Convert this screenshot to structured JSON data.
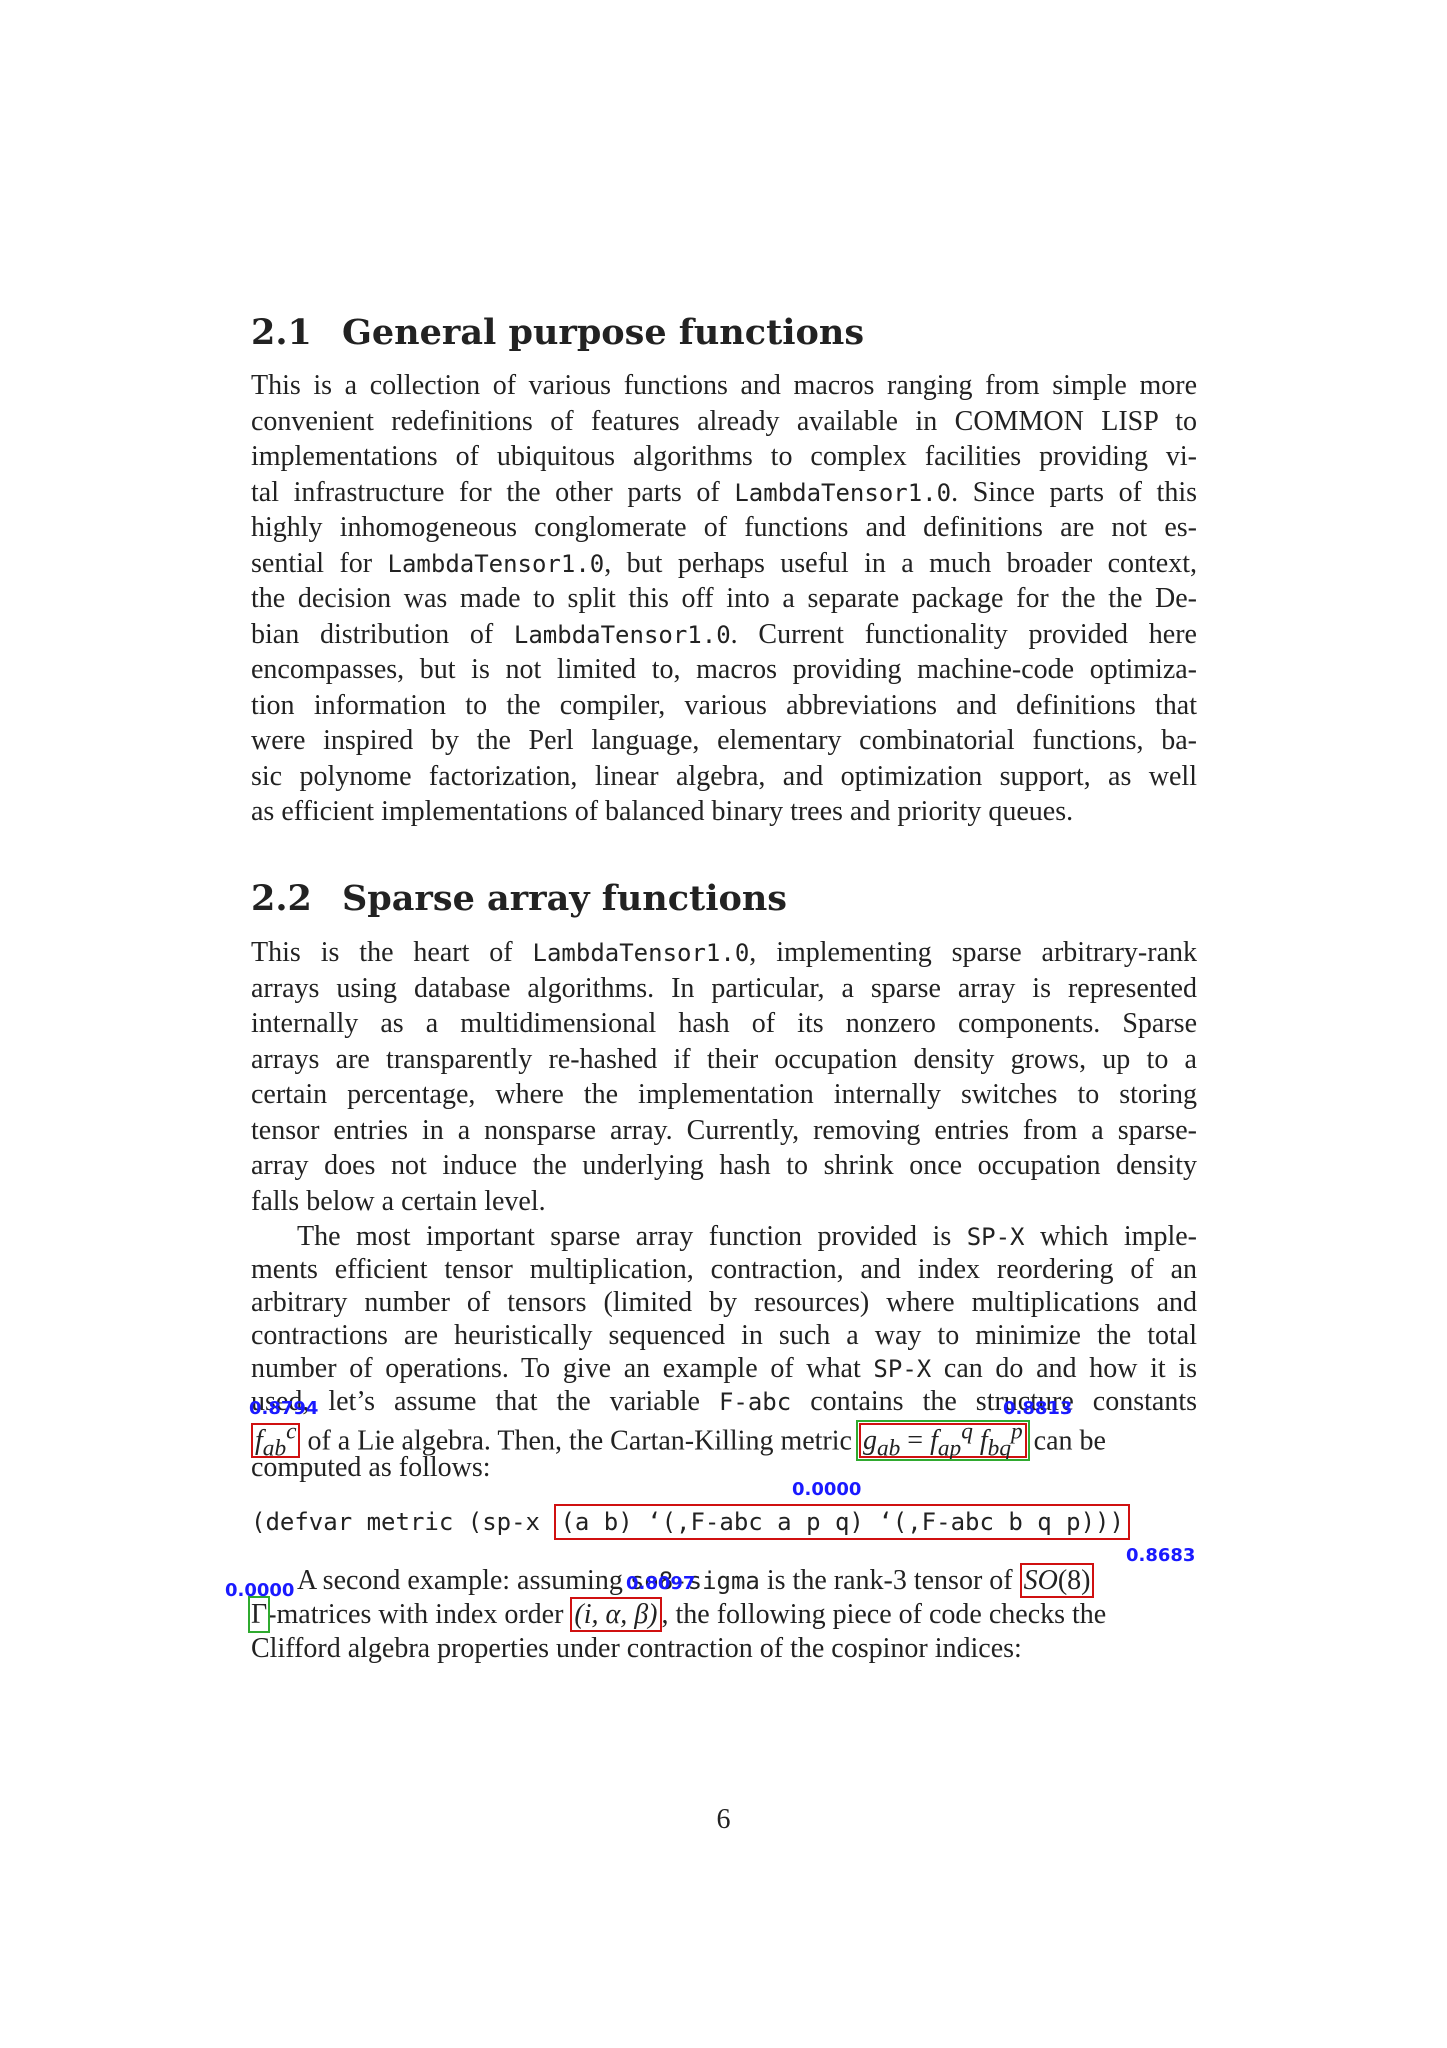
{
  "sections": [
    {
      "number": "2.1",
      "title": "General purpose functions",
      "lines": [
        "This is a collection of various functions and macros ranging from simple more",
        "convenient redefinitions of features already available in COMMON LISP to",
        "implementations of ubiquitous algorithms to complex facilities providing vi-",
        [
          "tal infrastructure for the other parts of ",
          "LambdaTensor1.0",
          ". Since parts of this"
        ],
        "highly inhomogeneous conglomerate of functions and definitions are not es-",
        [
          "sential for ",
          "LambdaTensor1.0",
          ", but perhaps useful in a much broader context,"
        ],
        "the decision was made to split this off into a separate package for the the De-",
        [
          "bian distribution of ",
          "LambdaTensor1.0",
          ". Current functionality provided here"
        ],
        "encompasses, but is not limited to, macros providing machine-code optimiza-",
        "tion information to the compiler, various abbreviations and definitions that",
        "were inspired by the Perl language, elementary combinatorial functions, ba-",
        "sic polynome factorization, linear algebra, and optimization support, as well",
        "as efficient implementations of balanced binary trees and priority queues."
      ]
    },
    {
      "number": "2.2",
      "title": "Sparse array functions",
      "lines": [
        [
          "This is the heart of ",
          "LambdaTensor1.0",
          ", implementing sparse arbitrary-rank"
        ],
        "arrays using database algorithms. In particular, a sparse array is represented",
        "internally as a multidimensional hash of its nonzero components. Sparse",
        "arrays are transparently re-hashed if their occupation density grows, up to a",
        "certain percentage, where the implementation internally switches to storing",
        "tensor entries in a nonsparse array. Currently, removing entries from a sparse-",
        "array does not induce the underlying hash to shrink once occupation density",
        "falls below a certain level."
      ]
    }
  ],
  "para2": {
    "l1": [
      "The most important sparse array function provided is ",
      "SP-X",
      " which imple-"
    ],
    "l2": "ments efficient tensor multiplication, contraction, and index reordering of an",
    "l3": "arbitrary number of tensors (limited by resources) where multiplications and",
    "l4": "contractions are heuristically sequenced in such a way to minimize the total",
    "l5": [
      "number of operations. To give an example of what ",
      "SP-X",
      " can do and how it is"
    ],
    "l6": [
      "used, let’s assume that the variable ",
      "F-abc",
      " contains the structure constants"
    ],
    "l7_a": "f",
    "l7_a_sub": "ab",
    "l7_a_sup": "c",
    "l7_b": " of a Lie algebra. Then, the Cartan-Killing metric ",
    "l7_g": "g",
    "l7_g_sub": "ab",
    "l7_eq": " = ",
    "l7_f1": "f",
    "l7_f1_sub": "ap",
    "l7_f1_sup": "q",
    "l7_f2": " f",
    "l7_f2_sub": "bq",
    "l7_f2_sup": "p",
    "l7_c": " can be",
    "l8": "computed as follows:"
  },
  "code": {
    "prefix": "(defvar metric (sp-x ",
    "boxed": "(a b) ‘(,F-abc a p q) ‘(,F-abc b q p)))"
  },
  "para3": {
    "l1_a": "A second example: assuming ",
    "l1_tt": "so8-sigma",
    "l1_b": " is the rank-3 tensor of ",
    "l1_math": "SO",
    "l1_math2": "(8)",
    "l2_a": "Γ",
    "l2_b": "-matrices with index order ",
    "l2_math": "(i, α, β)",
    "l2_c": ", the following piece of code checks the",
    "l3": "Clifford algebra properties under contraction of the cospinor indices:"
  },
  "scores": {
    "s1": "0.8794",
    "s2": "0.8813",
    "s3": "0.0000",
    "s4": "0.8683",
    "s5": "0.0000",
    "s6": "0.8097"
  },
  "page_number": "6"
}
